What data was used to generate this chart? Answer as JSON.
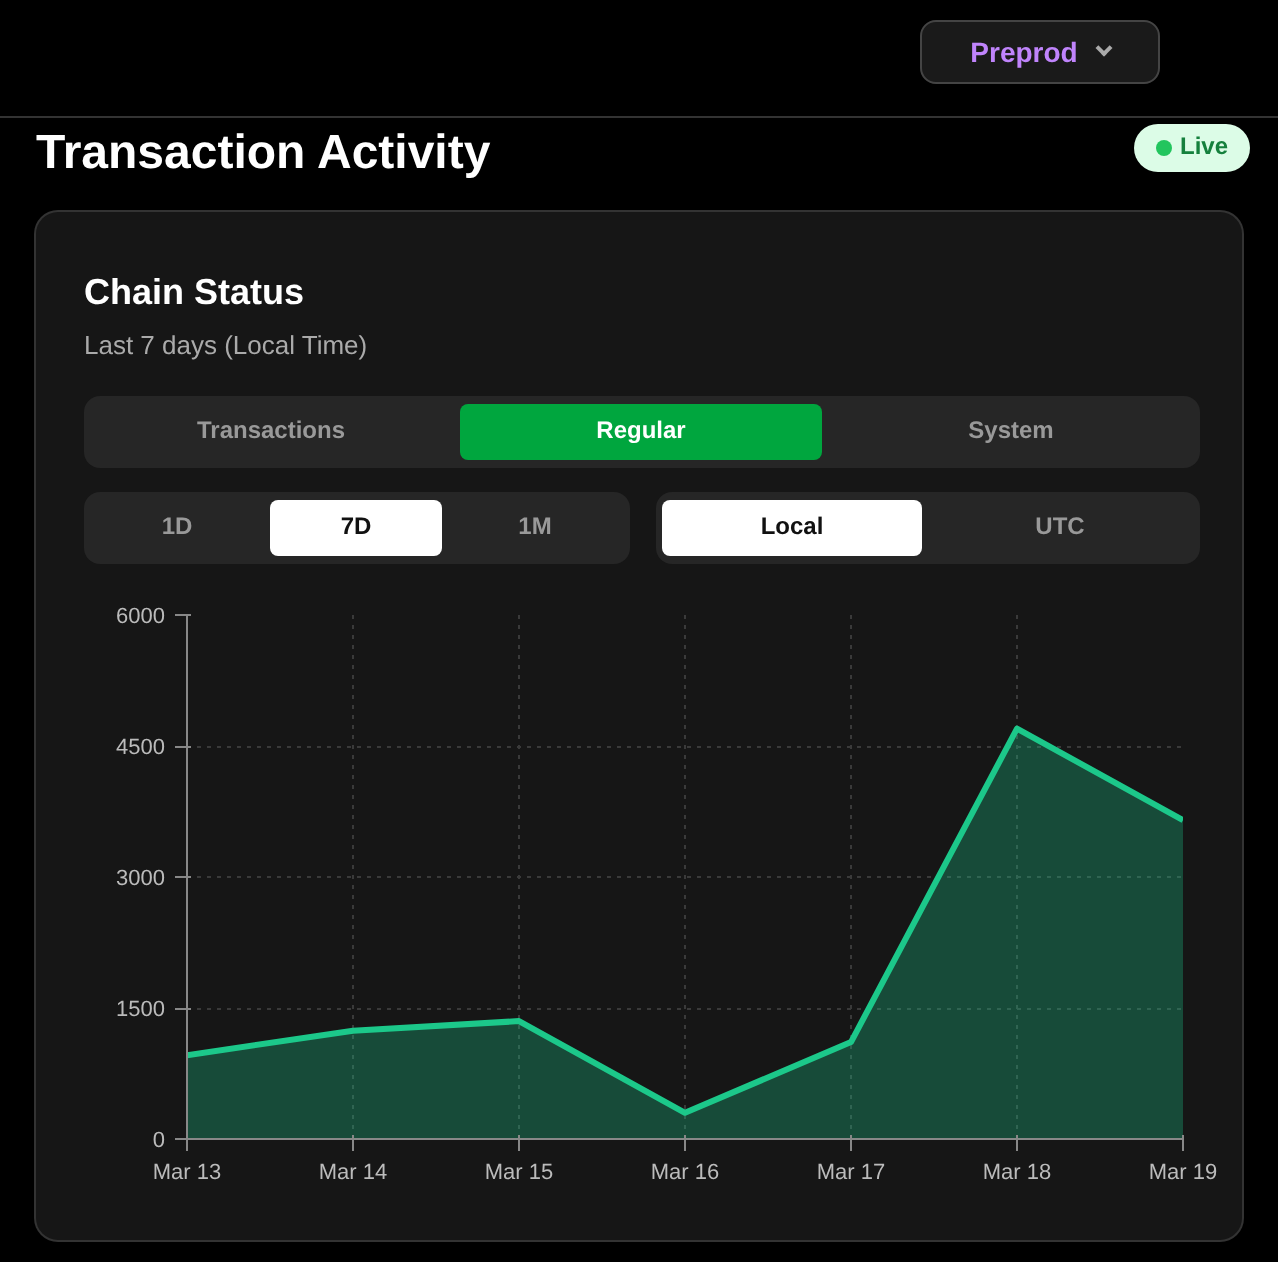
{
  "chart_data": {
    "type": "area",
    "title": "Chain Status",
    "subtitle": "Last 7 days (Local Time)",
    "annotations": [
      "Preprod",
      "Transaction Activity",
      "Live",
      "Transactions",
      "Regular",
      "System",
      "1D",
      "7D",
      "1M",
      "Local",
      "UTC"
    ],
    "categories": [
      "Mar 13",
      "Mar 14",
      "Mar 15",
      "Mar 16",
      "Mar 17",
      "Mar 18",
      "Mar 19"
    ],
    "values": [
      960,
      1240,
      1350,
      300,
      1110,
      4700,
      3650
    ],
    "color": "#1cc88a",
    "ylim": [
      0,
      6000
    ],
    "yticks": [
      0,
      1500,
      3000,
      4500,
      6000
    ],
    "grid": true
  }
}
